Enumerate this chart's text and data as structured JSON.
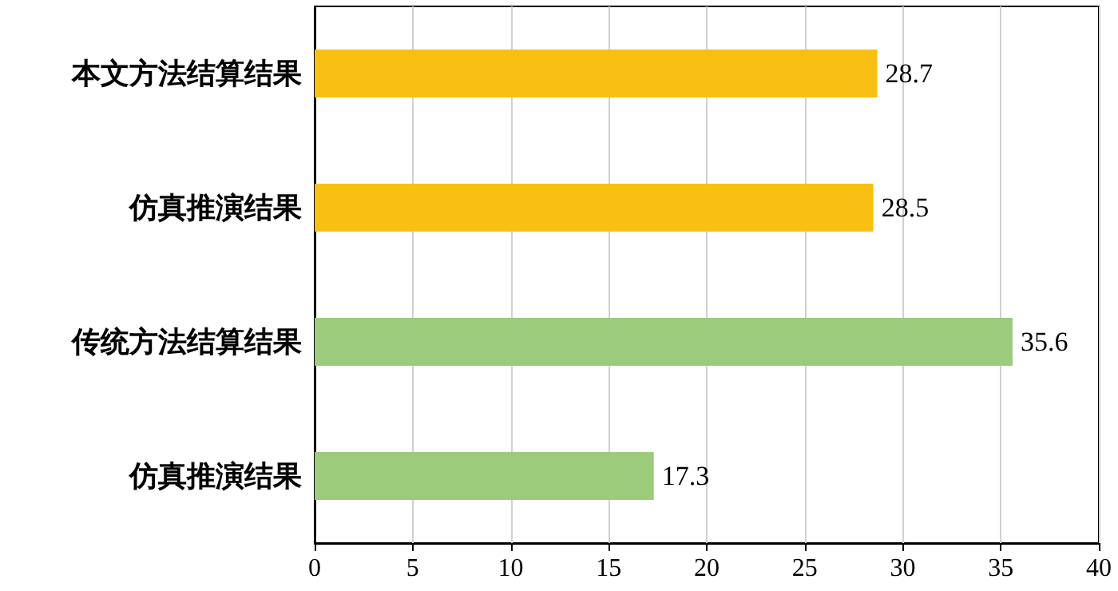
{
  "chart_data": {
    "type": "bar",
    "orientation": "horizontal",
    "categories": [
      "本文方法结算结果",
      "仿真推演结果",
      "传统方法结算结果",
      "仿真推演结果"
    ],
    "values": [
      28.7,
      28.5,
      35.6,
      17.3
    ],
    "colors": [
      "#f9c013",
      "#f9c013",
      "#9ccb7b",
      "#9ccb7b"
    ],
    "xlim": [
      0,
      40
    ],
    "xticks": [
      0,
      5,
      10,
      15,
      20,
      25,
      30,
      35,
      40
    ],
    "grid": "x",
    "data_labels": true
  }
}
